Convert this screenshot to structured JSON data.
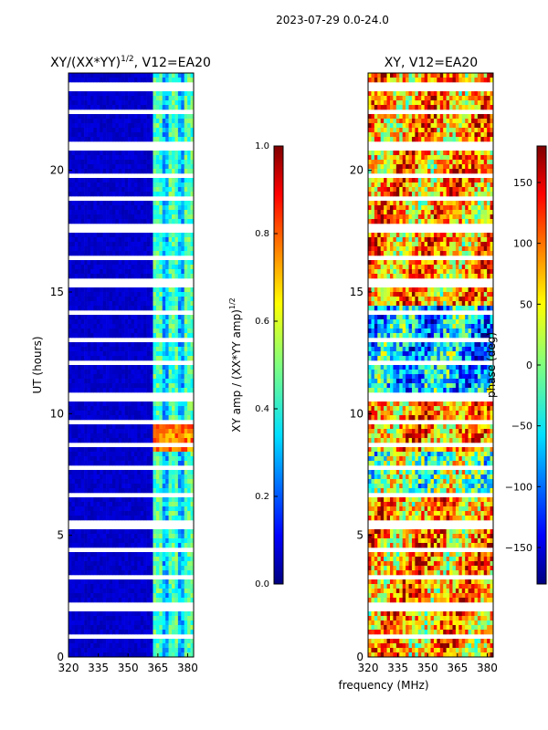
{
  "suptitle": "2023-07-29 0.0-24.0",
  "chart_data": [
    {
      "type": "heatmap",
      "title": "XY/(XX*YY)$^{1/2}$, V12=EA20",
      "title_main": "XY/(XX*YY)",
      "title_exp": "1/2",
      "title_tail": ", V12=EA20",
      "xlabel": "frequency (MHz)",
      "ylabel": "UT (hours)",
      "xlim": [
        320,
        383
      ],
      "ylim": [
        0,
        24
      ],
      "xticks": [
        "320",
        "335",
        "350",
        "365",
        "380"
      ],
      "yticks": [
        "0",
        "5",
        "10",
        "15",
        "20"
      ],
      "colorbar": {
        "label": "XY amp / (XX*YY amp)$^{1/2}$",
        "label_main": "XY amp / (XX*YY amp)",
        "label_exp": "1/2",
        "range": [
          0.0,
          1.0
        ],
        "ticks": [
          "0.0",
          "0.2",
          "0.4",
          "0.6",
          "0.8",
          "1.0"
        ]
      }
    },
    {
      "type": "heatmap",
      "title": "XY, V12=EA20",
      "xlabel": "frequency (MHz)",
      "xlim": [
        320,
        383
      ],
      "ylim": [
        0,
        24
      ],
      "xticks": [
        "320",
        "335",
        "350",
        "365",
        "380"
      ],
      "yticks": [
        "0",
        "5",
        "10",
        "15",
        "20"
      ],
      "colorbar": {
        "label": "phase (deg)",
        "range": [
          -180,
          180
        ],
        "ticks": [
          "−150",
          "−100",
          "−50",
          "0",
          "50",
          "100",
          "150"
        ]
      }
    }
  ],
  "colors": {
    "jet": [
      "#00007f",
      "#0000ff",
      "#007fff",
      "#00ffff",
      "#7fff7f",
      "#ffff00",
      "#ff7f00",
      "#ff0000",
      "#7f0000"
    ]
  }
}
